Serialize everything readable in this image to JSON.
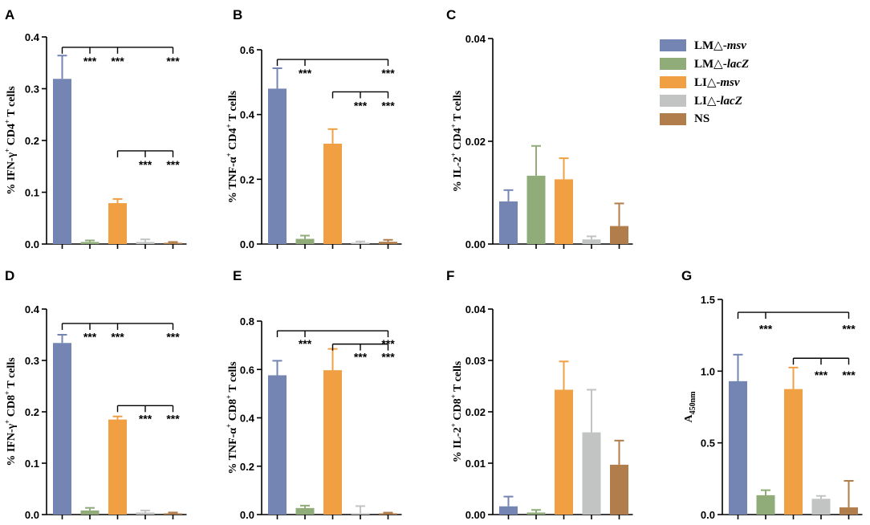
{
  "colors": {
    "LM_msv": "#7585b3",
    "LM_lacZ": "#8fac79",
    "LI_msv": "#f0a043",
    "LI_lacZ": "#c2c4c3",
    "NS": "#b17d4b"
  },
  "legend": [
    {
      "prefix": "LM△-",
      "suffix": "msv",
      "color_key": "LM_msv"
    },
    {
      "prefix": "LM△-",
      "suffix": "lacZ",
      "color_key": "LM_lacZ"
    },
    {
      "prefix": "LI△-",
      "suffix": "msv",
      "color_key": "LI_msv"
    },
    {
      "prefix": "LI△-",
      "suffix": "lacZ",
      "color_key": "LI_lacZ"
    },
    {
      "prefix": "NS",
      "suffix": "",
      "color_key": "NS"
    }
  ],
  "chart_data": [
    {
      "panel": "A",
      "type": "bar",
      "ylabel": {
        "main": "% IFN-γ",
        "sup1": "+",
        "mid": " CD4",
        "sup2": "+",
        "tail": " T cells"
      },
      "ylim": [
        0,
        0.4
      ],
      "ticks": [
        "0.0",
        "0.1",
        "0.2",
        "0.3",
        "0.4"
      ],
      "tick_values": [
        0,
        0.1,
        0.2,
        0.3,
        0.4
      ],
      "groups": [
        "LM_msv",
        "LM_lacZ",
        "LI_msv",
        "LI_lacZ",
        "NS"
      ],
      "values": [
        0.319,
        0.004,
        0.079,
        0.004,
        0.002
      ],
      "errors": [
        0.045,
        0.003,
        0.008,
        0.005,
        0.002
      ],
      "brackets": [
        {
          "from": 0,
          "to": 4,
          "y": 0.38,
          "drops": [
            1,
            2,
            4
          ],
          "stars": "***",
          "star_y": 0.355
        },
        {
          "from": 2,
          "to": 4,
          "y": 0.18,
          "drops": [
            3,
            4
          ],
          "stars": "***",
          "star_y": 0.155
        }
      ]
    },
    {
      "panel": "B",
      "type": "bar",
      "ylabel": {
        "main": "% TNF-α",
        "sup1": "+",
        "mid": " CD4",
        "sup2": "+",
        "tail": " T cells"
      },
      "ylim": [
        0,
        0.6
      ],
      "ticks": [
        "0.0",
        "0.2",
        "0.4",
        "0.6"
      ],
      "tick_values": [
        0,
        0.2,
        0.4,
        0.6
      ],
      "groups": [
        "LM_msv",
        "LM_lacZ",
        "LI_msv",
        "LI_lacZ",
        "NS"
      ],
      "values": [
        0.48,
        0.016,
        0.31,
        0.004,
        0.007
      ],
      "errors": [
        0.063,
        0.01,
        0.045,
        0.004,
        0.006
      ],
      "brackets": [
        {
          "from": 0,
          "to": 4,
          "y": 0.57,
          "drops": [
            1,
            4
          ],
          "stars": "***",
          "star_y": 0.53
        },
        {
          "from": 2,
          "to": 4,
          "y": 0.47,
          "drops": [
            3,
            4
          ],
          "stars": "***",
          "star_y": 0.43
        }
      ]
    },
    {
      "panel": "C",
      "type": "bar",
      "ylabel": {
        "main": "% IL-2",
        "sup1": "+",
        "mid": " CD4",
        "sup2": "+",
        "tail": " T cells"
      },
      "ylim": [
        0,
        0.04
      ],
      "ticks": [
        "0.00",
        "0.02",
        "0.04"
      ],
      "tick_values": [
        0,
        0.02,
        0.04
      ],
      "groups": [
        "LM_msv",
        "LM_lacZ",
        "LI_msv",
        "LI_lacZ",
        "NS"
      ],
      "values": [
        0.0083,
        0.0133,
        0.0126,
        0.0009,
        0.0035
      ],
      "errors": [
        0.0022,
        0.0058,
        0.0041,
        0.0006,
        0.0044
      ],
      "brackets": []
    },
    {
      "panel": "D",
      "type": "bar",
      "ylabel": {
        "main": "% IFN-γ",
        "sup1": "+",
        "mid": " CD8",
        "sup2": "+",
        "tail": " T cells"
      },
      "ylim": [
        0,
        0.4
      ],
      "ticks": [
        "0.0",
        "0.1",
        "0.2",
        "0.3",
        "0.4"
      ],
      "tick_values": [
        0,
        0.1,
        0.2,
        0.3,
        0.4
      ],
      "groups": [
        "LM_msv",
        "LM_lacZ",
        "LI_msv",
        "LI_lacZ",
        "NS"
      ],
      "values": [
        0.334,
        0.008,
        0.185,
        0.004,
        0.002
      ],
      "errors": [
        0.016,
        0.005,
        0.006,
        0.004,
        0.002
      ],
      "brackets": [
        {
          "from": 0,
          "to": 4,
          "y": 0.372,
          "drops": [
            1,
            2,
            4
          ],
          "stars": "***",
          "star_y": 0.348
        },
        {
          "from": 2,
          "to": 4,
          "y": 0.212,
          "drops": [
            3,
            4
          ],
          "stars": "***",
          "star_y": 0.188
        }
      ]
    },
    {
      "panel": "E",
      "type": "bar",
      "ylabel": {
        "main": "% TNF-α",
        "sup1": "+",
        "mid": " CD8",
        "sup2": "+",
        "tail": " T cells"
      },
      "ylim": [
        0,
        0.8
      ],
      "ticks": [
        "0.0",
        "0.2",
        "0.4",
        "0.6",
        "0.8"
      ],
      "tick_values": [
        0,
        0.2,
        0.4,
        0.6,
        0.8
      ],
      "groups": [
        "LM_msv",
        "LM_lacZ",
        "LI_msv",
        "LI_lacZ",
        "NS"
      ],
      "values": [
        0.576,
        0.027,
        0.597,
        0.003,
        0.004
      ],
      "errors": [
        0.06,
        0.01,
        0.088,
        0.032,
        0.004
      ],
      "brackets": [
        {
          "from": 0,
          "to": 4,
          "y": 0.76,
          "drops": [
            1,
            4
          ],
          "stars": "***",
          "star_y": 0.71
        },
        {
          "from": 2,
          "to": 4,
          "y": 0.705,
          "drops": [
            3,
            4
          ],
          "stars": "***",
          "star_y": 0.655
        }
      ]
    },
    {
      "panel": "F",
      "type": "bar",
      "ylabel": {
        "main": "% IL-2",
        "sup1": "+",
        "mid": " CD8",
        "sup2": "+",
        "tail": " T cells"
      },
      "ylim": [
        0,
        0.04
      ],
      "ticks": [
        "0.00",
        "0.01",
        "0.02",
        "0.03",
        "0.04"
      ],
      "tick_values": [
        0,
        0.01,
        0.02,
        0.03,
        0.04
      ],
      "groups": [
        "LM_msv",
        "LM_lacZ",
        "LI_msv",
        "LI_lacZ",
        "NS"
      ],
      "values": [
        0.0016,
        0.0004,
        0.0243,
        0.016,
        0.0097
      ],
      "errors": [
        0.0019,
        0.0005,
        0.0055,
        0.0083,
        0.0047
      ],
      "brackets": []
    },
    {
      "panel": "G",
      "type": "bar",
      "ylabel": {
        "main": "A",
        "sub": "450nm"
      },
      "ylim": [
        0,
        1.5
      ],
      "ticks": [
        "0.0",
        "0.5",
        "1.0",
        "1.5"
      ],
      "tick_values": [
        0,
        0.5,
        1.0,
        1.5
      ],
      "groups": [
        "LM_msv",
        "LM_lacZ",
        "LI_msv",
        "LI_lacZ",
        "NS"
      ],
      "values": [
        0.93,
        0.135,
        0.875,
        0.11,
        0.05
      ],
      "errors": [
        0.185,
        0.035,
        0.15,
        0.02,
        0.185
      ],
      "brackets": [
        {
          "from": 0,
          "to": 4,
          "y": 1.41,
          "drops": [
            1,
            4
          ],
          "stars": "***",
          "star_y": 1.3
        },
        {
          "from": 2,
          "to": 4,
          "y": 1.09,
          "drops": [
            3,
            4
          ],
          "stars": "***",
          "star_y": 0.98
        }
      ]
    }
  ]
}
